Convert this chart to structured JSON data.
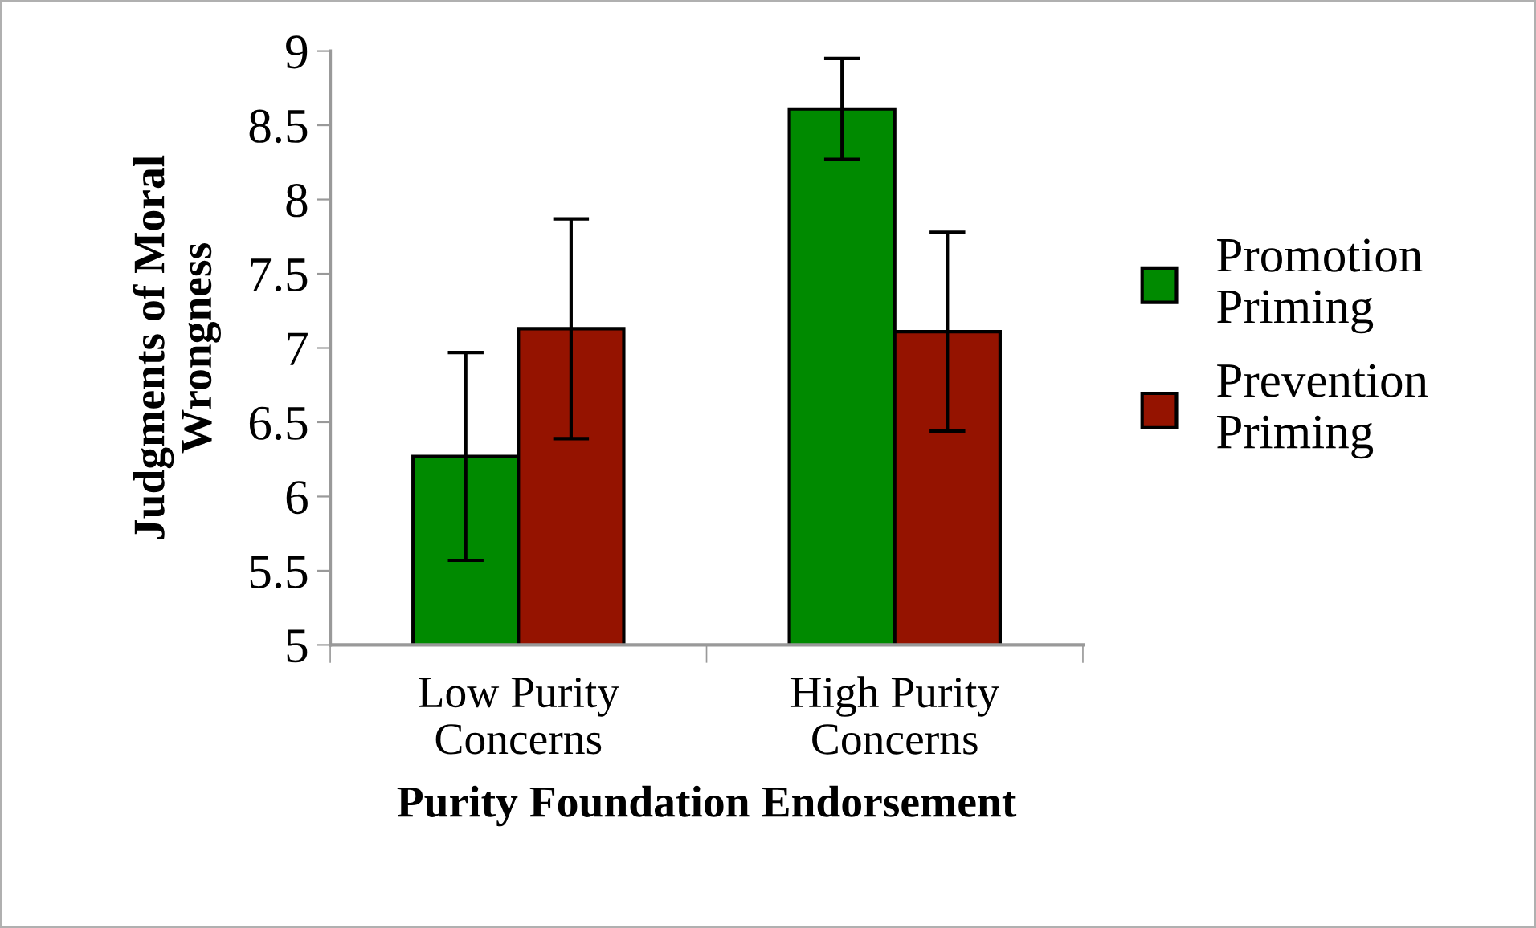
{
  "chart_data": {
    "type": "bar",
    "xlabel": "Purity Foundation Endorsement",
    "ylabel": "Judgments of Moral\nWrongness",
    "categories": [
      "Low Purity\nConcerns",
      "High Purity\nConcerns"
    ],
    "series": [
      {
        "name": "Promotion\nPriming",
        "color": "#008a00",
        "values": [
          6.27,
          8.61
        ],
        "errors": [
          0.7,
          0.34
        ]
      },
      {
        "name": "Prevention\nPriming",
        "color": "#951300",
        "values": [
          7.13,
          7.11
        ],
        "errors": [
          0.74,
          0.67
        ]
      }
    ],
    "ylim": [
      5,
      9
    ],
    "yticks": [
      5,
      5.5,
      6,
      6.5,
      7,
      7.5,
      8,
      8.5,
      9
    ],
    "grid": false,
    "legend": "right"
  }
}
